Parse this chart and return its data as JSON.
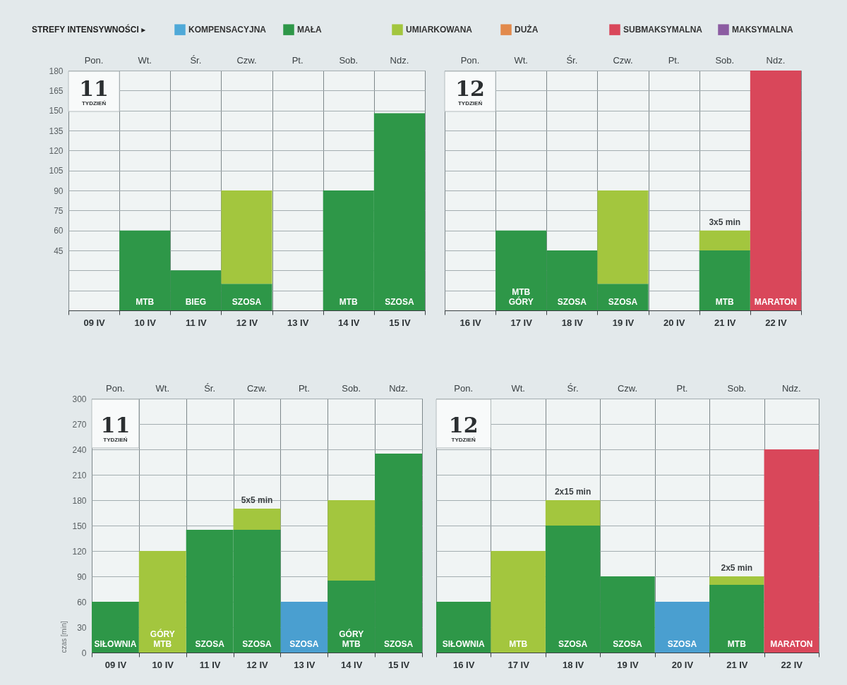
{
  "chart_data": [
    {
      "type": "bar",
      "title": "11",
      "subtitle": "TYDZIEŃ",
      "legend_title": "STREFY INTENSYWNOŚCI ▸",
      "categories": [
        "09 IV",
        "10 IV",
        "11 IV",
        "12 IV",
        "13 IV",
        "14 IV",
        "15 IV"
      ],
      "series": [
        {
          "name": "KOMPENSACYJNA",
          "color": "#4fa9d8",
          "values": [
            null,
            null,
            null,
            null,
            null,
            null,
            null
          ]
        },
        {
          "name": "MAŁA",
          "color": "#2e9748",
          "values": [
            null,
            60,
            30,
            20,
            null,
            90,
            148
          ]
        },
        {
          "name": "UMIARKOWANA",
          "color": "#a3c63e",
          "values": [
            null,
            null,
            null,
            70,
            null,
            null,
            null
          ]
        },
        {
          "name": "DUŻA",
          "color": "#e28a4c",
          "values": [
            null,
            null,
            null,
            null,
            null,
            null,
            null
          ]
        },
        {
          "name": "SUBMAKSYMALNA",
          "color": "#d9475a",
          "values": [
            null,
            null,
            null,
            null,
            null,
            null,
            null
          ]
        },
        {
          "name": "MAKSYMALNA",
          "color": "#8c5ca2",
          "values": [
            null,
            null,
            null,
            null,
            null,
            null,
            null
          ]
        }
      ],
      "stacked": true,
      "ylim": [
        0,
        180
      ],
      "yticks": [
        {
          "value": 0,
          "label": null
        },
        {
          "value": 15,
          "label": null
        },
        {
          "value": 30,
          "label": null
        },
        45,
        60,
        75,
        90,
        105,
        120,
        135,
        150,
        165,
        180
      ],
      "grid": true,
      "legend": "top",
      "annotations": [
        "Pon.",
        "Wt.",
        "Śr.",
        "Czw.",
        "Pt.",
        "Sob.",
        "Ndz.",
        {
          "text": "MTB",
          "x": "10 IV",
          "y": 0
        },
        {
          "text": "BIEG",
          "x": "11 IV",
          "y": 0
        },
        {
          "text": "SZOSA",
          "x": "12 IV",
          "y": 0
        },
        {
          "text": "MTB",
          "x": "14 IV",
          "y": 0
        },
        {
          "text": "SZOSA",
          "x": "15 IV",
          "y": 0
        }
      ]
    },
    {
      "type": "bar",
      "title": "12",
      "subtitle": "TYDZIEŃ",
      "categories": [
        "16 IV",
        "17 IV",
        "18 IV",
        "19 IV",
        "20 IV",
        "21 IV",
        "22 IV"
      ],
      "series": [
        {
          "color": "#2e9748",
          "values": [
            null,
            60,
            45,
            20,
            null,
            45,
            null
          ]
        },
        {
          "color": "#a3c63e",
          "values": [
            null,
            null,
            null,
            70,
            null,
            15,
            null
          ]
        },
        {
          "color": "#d9475a",
          "values": [
            null,
            null,
            null,
            null,
            null,
            null,
            180
          ]
        }
      ],
      "stacked": true,
      "ylim": [
        0,
        180
      ],
      "yticks": [
        0,
        15,
        30,
        45,
        60,
        75,
        90,
        105,
        120,
        135,
        150,
        165,
        180
      ],
      "tick_labels": "x",
      "grid": true,
      "annotations": [
        "Pon.",
        "Wt.",
        "Śr.",
        "Czw.",
        "Pt.",
        "Sob.",
        "Ndz.",
        {
          "text": "MTB\nGÓRY",
          "x": "17 IV",
          "y": 0
        },
        {
          "text": "SZOSA",
          "x": "18 IV",
          "y": 0
        },
        {
          "text": "SZOSA",
          "x": "19 IV",
          "y": 0
        },
        {
          "text": "MTB",
          "x": "21 IV",
          "y": 0
        },
        {
          "text": "MARATON",
          "x": "22 IV",
          "y": 0
        },
        {
          "text": "3x5 min",
          "x": "21 IV",
          "y": 60
        }
      ]
    },
    {
      "type": "bar",
      "title": "11",
      "subtitle": "TYDZIEŃ",
      "ylabel": "czas [min]",
      "categories": [
        "09 IV",
        "10 IV",
        "11 IV",
        "12 IV",
        "13 IV",
        "14 IV",
        "15 IV"
      ],
      "series": [
        {
          "color": "#4a9fd0",
          "values": [
            null,
            null,
            null,
            null,
            60,
            null,
            null
          ]
        },
        {
          "color": "#2e9748",
          "values": [
            60,
            null,
            145,
            145,
            null,
            85,
            235
          ]
        },
        {
          "color": "#a3c63e",
          "values": [
            null,
            120,
            null,
            25,
            null,
            95,
            null
          ]
        }
      ],
      "stacked": true,
      "ylim": [
        0,
        300
      ],
      "yticks": [
        0,
        30,
        60,
        90,
        120,
        150,
        180,
        210,
        240,
        270,
        300
      ],
      "grid": true,
      "annotations": [
        "Pon.",
        "Wt.",
        "Śr.",
        "Czw.",
        "Pt.",
        "Sob.",
        "Ndz.",
        {
          "text": "SIŁOWNIA",
          "x": "09 IV",
          "y": 0
        },
        {
          "text": "GÓRY\nMTB",
          "x": "10 IV",
          "y": 0
        },
        {
          "text": "SZOSA",
          "x": "11 IV",
          "y": 0
        },
        {
          "text": "SZOSA",
          "x": "12 IV",
          "y": 0
        },
        {
          "text": "SZOSA",
          "x": "13 IV",
          "y": 0
        },
        {
          "text": "GÓRY\nMTB",
          "x": "14 IV",
          "y": 0
        },
        {
          "text": "SZOSA",
          "x": "15 IV",
          "y": 0
        },
        {
          "text": "5x5 min",
          "x": "12 IV",
          "y": 170
        }
      ]
    },
    {
      "type": "bar",
      "title": "12",
      "subtitle": "TYDZIEŃ",
      "categories": [
        "16 IV",
        "17 IV",
        "18 IV",
        "19 IV",
        "20 IV",
        "21 IV",
        "22 IV"
      ],
      "series": [
        {
          "color": "#4a9fd0",
          "values": [
            null,
            null,
            null,
            null,
            60,
            null,
            null
          ]
        },
        {
          "color": "#2e9748",
          "values": [
            60,
            null,
            150,
            90,
            null,
            80,
            null
          ]
        },
        {
          "color": "#a3c63e",
          "values": [
            null,
            120,
            30,
            null,
            null,
            10,
            null
          ]
        },
        {
          "color": "#d9475a",
          "values": [
            null,
            null,
            null,
            null,
            null,
            null,
            240
          ]
        }
      ],
      "stacked": true,
      "ylim": [
        0,
        300
      ],
      "yticks": [
        0,
        30,
        60,
        90,
        120,
        150,
        180,
        210,
        240,
        270,
        300
      ],
      "tick_labels": "x",
      "grid": true,
      "annotations": [
        "Pon.",
        "Wt.",
        "Śr.",
        "Czw.",
        "Pt.",
        "Sob.",
        "Ndz.",
        {
          "text": "SIŁOWNIA",
          "x": "16 IV",
          "y": 0
        },
        {
          "text": "MTB",
          "x": "17 IV",
          "y": 0
        },
        {
          "text": "SZOSA",
          "x": "18 IV",
          "y": 0
        },
        {
          "text": "SZOSA",
          "x": "19 IV",
          "y": 0
        },
        {
          "text": "SZOSA",
          "x": "20 IV",
          "y": 0
        },
        {
          "text": "MTB",
          "x": "21 IV",
          "y": 0
        },
        {
          "text": "MARATON",
          "x": "22 IV",
          "y": 0
        },
        {
          "text": "2x15 min",
          "x": "18 IV",
          "y": 180
        },
        {
          "text": "2x5 min",
          "x": "21 IV",
          "y": 90
        }
      ]
    }
  ]
}
